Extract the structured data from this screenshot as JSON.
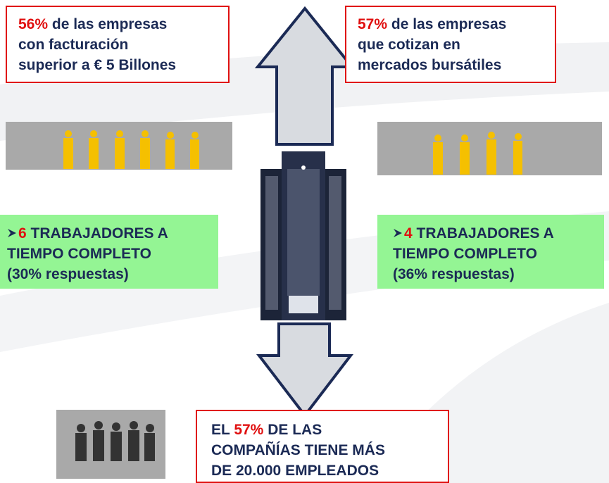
{
  "top_left": {
    "highlight": "56%",
    "lines": [
      "de las empresas",
      "con facturación",
      "superior a € 5 Billones"
    ]
  },
  "top_right": {
    "highlight": "57%",
    "lines": [
      "de las empresas",
      "que cotizan en",
      "mercados bursátiles"
    ]
  },
  "mid_left": {
    "highlight": "6",
    "lines": [
      "TRABAJADORES A",
      "TIEMPO COMPLETO",
      "(30% respuestas)"
    ]
  },
  "mid_right": {
    "highlight": "4",
    "lines": [
      "TRABAJADORES A",
      "TIEMPO COMPLETO",
      "(36% respuestas)"
    ]
  },
  "bottom": {
    "prefix": "EL",
    "highlight": "57%",
    "lines": [
      "DE LAS",
      "COMPAÑÍAS TIENE MÁS",
      "DE 20.000 EMPLEADOS"
    ]
  }
}
